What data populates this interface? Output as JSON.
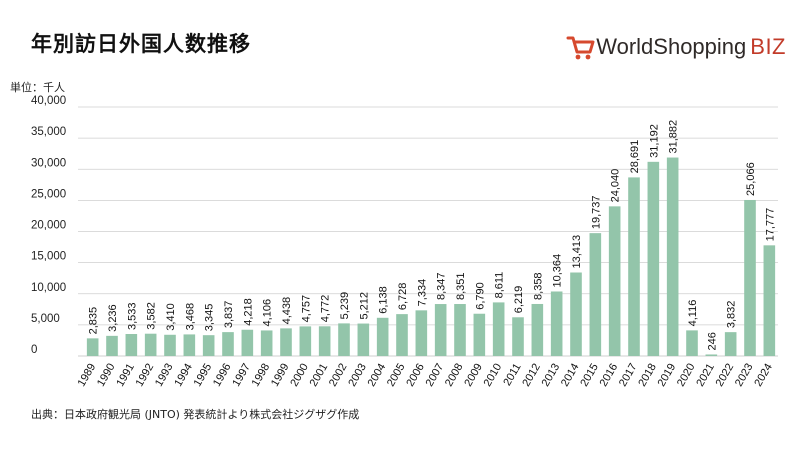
{
  "header": {
    "title": "年別訪日外国人数推移",
    "unit": "単位：千人",
    "logo": {
      "main": "WorldShopping",
      "suffix": "BIZ"
    }
  },
  "footer": {
    "source": "出典：日本政府観光局 (JNTO) 発表統計より株式会社ジグザグ作成"
  },
  "colors": {
    "bar": "#93c5aa",
    "grid": "#cfcfcf",
    "accent": "#d6492e"
  },
  "chart_data": {
    "type": "bar",
    "title": "年別訪日外国人数推移",
    "ylabel": "単位：千人",
    "xlabel": "",
    "ylim": [
      0,
      40000
    ],
    "yticks": [
      0,
      5000,
      10000,
      15000,
      20000,
      25000,
      30000,
      35000,
      40000
    ],
    "ytick_labels": [
      "0",
      "5,000",
      "10,000",
      "15,000",
      "20,000",
      "25,000",
      "30,000",
      "35,000",
      "40,000"
    ],
    "grid": true,
    "categories": [
      "1989",
      "1990",
      "1991",
      "1992",
      "1993",
      "1994",
      "1995",
      "1996",
      "1997",
      "1998",
      "1999",
      "2000",
      "2001",
      "2002",
      "2003",
      "2004",
      "2005",
      "2006",
      "2007",
      "2008",
      "2009",
      "2010",
      "2011",
      "2012",
      "2013",
      "2014",
      "2015",
      "2016",
      "2017",
      "2018",
      "2019",
      "2020",
      "2021",
      "2022",
      "2023",
      "2024"
    ],
    "values": [
      2835,
      3236,
      3533,
      3582,
      3410,
      3468,
      3345,
      3837,
      4218,
      4106,
      4438,
      4757,
      4772,
      5239,
      5212,
      6138,
      6728,
      7334,
      8347,
      8351,
      6790,
      8611,
      6219,
      8358,
      10364,
      13413,
      19737,
      24040,
      28691,
      31192,
      31882,
      4116,
      246,
      3832,
      25066,
      17777
    ],
    "value_labels": [
      "2,835",
      "3,236",
      "3,533",
      "3,582",
      "3,410",
      "3,468",
      "3,345",
      "3,837",
      "4,218",
      "4,106",
      "4,438",
      "4,757",
      "4,772",
      "5,239",
      "5,212",
      "6,138",
      "6,728",
      "7,334",
      "8,347",
      "8,351",
      "6,790",
      "8,611",
      "6,219",
      "8,358",
      "10,364",
      "13,413",
      "19,737",
      "24,040",
      "28,691",
      "31,192",
      "31,882",
      "4,116",
      "246",
      "3,832",
      "25,066",
      "17,777"
    ]
  }
}
